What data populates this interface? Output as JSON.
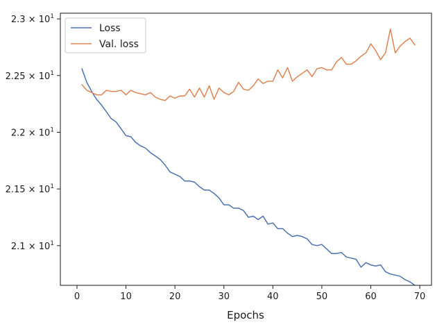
{
  "chart_data": {
    "type": "line",
    "title": "",
    "xlabel": "Epochs",
    "ylabel": "",
    "xlim": [
      -3.4,
      72.4
    ],
    "ylim": [
      20.65,
      23.05
    ],
    "xticks": [
      0,
      10,
      20,
      30,
      40,
      50,
      60,
      70
    ],
    "yticks": [
      {
        "value": 21.0,
        "mantissa": "2.1",
        "exponent": "1"
      },
      {
        "value": 21.5,
        "mantissa": "2.15",
        "exponent": "1"
      },
      {
        "value": 22.0,
        "mantissa": "2.2",
        "exponent": "1"
      },
      {
        "value": 22.5,
        "mantissa": "2.25",
        "exponent": "1"
      },
      {
        "value": 23.0,
        "mantissa": "2.3",
        "exponent": "1"
      }
    ],
    "y_tick_format": "mantissa × 10^exponent",
    "grid": false,
    "legend_position": "top-left",
    "x": [
      1,
      2,
      3,
      4,
      5,
      6,
      7,
      8,
      9,
      10,
      11,
      12,
      13,
      14,
      15,
      16,
      17,
      18,
      19,
      20,
      21,
      22,
      23,
      24,
      25,
      26,
      27,
      28,
      29,
      30,
      31,
      32,
      33,
      34,
      35,
      36,
      37,
      38,
      39,
      40,
      41,
      42,
      43,
      44,
      45,
      46,
      47,
      48,
      49,
      50,
      51,
      52,
      53,
      54,
      55,
      56,
      57,
      58,
      59,
      60,
      61,
      62,
      63,
      64,
      65,
      66,
      67,
      68,
      69
    ],
    "series": [
      {
        "name": "Loss",
        "color": "#4c72b0",
        "values": [
          22.56,
          22.44,
          22.36,
          22.29,
          22.24,
          22.18,
          22.12,
          22.09,
          22.03,
          21.97,
          21.96,
          21.91,
          21.88,
          21.86,
          21.82,
          21.79,
          21.76,
          21.71,
          21.65,
          21.63,
          21.61,
          21.57,
          21.57,
          21.56,
          21.52,
          21.49,
          21.49,
          21.46,
          21.42,
          21.36,
          21.36,
          21.33,
          21.33,
          21.31,
          21.25,
          21.26,
          21.23,
          21.26,
          21.19,
          21.2,
          21.15,
          21.15,
          21.11,
          21.08,
          21.09,
          21.08,
          21.06,
          21.01,
          21.0,
          21.01,
          20.97,
          20.93,
          20.93,
          20.94,
          20.9,
          20.89,
          20.88,
          20.81,
          20.85,
          20.83,
          20.82,
          20.83,
          20.77,
          20.75,
          20.74,
          20.73,
          20.7,
          20.68,
          20.65
        ]
      },
      {
        "name": "Val. loss",
        "color": "#dd8452",
        "values": [
          22.42,
          22.37,
          22.35,
          22.33,
          22.33,
          22.37,
          22.36,
          22.36,
          22.37,
          22.33,
          22.37,
          22.35,
          22.34,
          22.33,
          22.35,
          22.31,
          22.29,
          22.28,
          22.32,
          22.3,
          22.32,
          22.32,
          22.38,
          22.31,
          22.39,
          22.31,
          22.41,
          22.29,
          22.39,
          22.35,
          22.33,
          22.36,
          22.44,
          22.38,
          22.37,
          22.41,
          22.47,
          22.43,
          22.45,
          22.45,
          22.55,
          22.48,
          22.57,
          22.45,
          22.49,
          22.52,
          22.55,
          22.49,
          22.56,
          22.57,
          22.55,
          22.55,
          22.62,
          22.66,
          22.6,
          22.6,
          22.63,
          22.67,
          22.7,
          22.78,
          22.72,
          22.64,
          22.7,
          22.91,
          22.7,
          22.76,
          22.8,
          22.83,
          22.77
        ]
      }
    ]
  }
}
